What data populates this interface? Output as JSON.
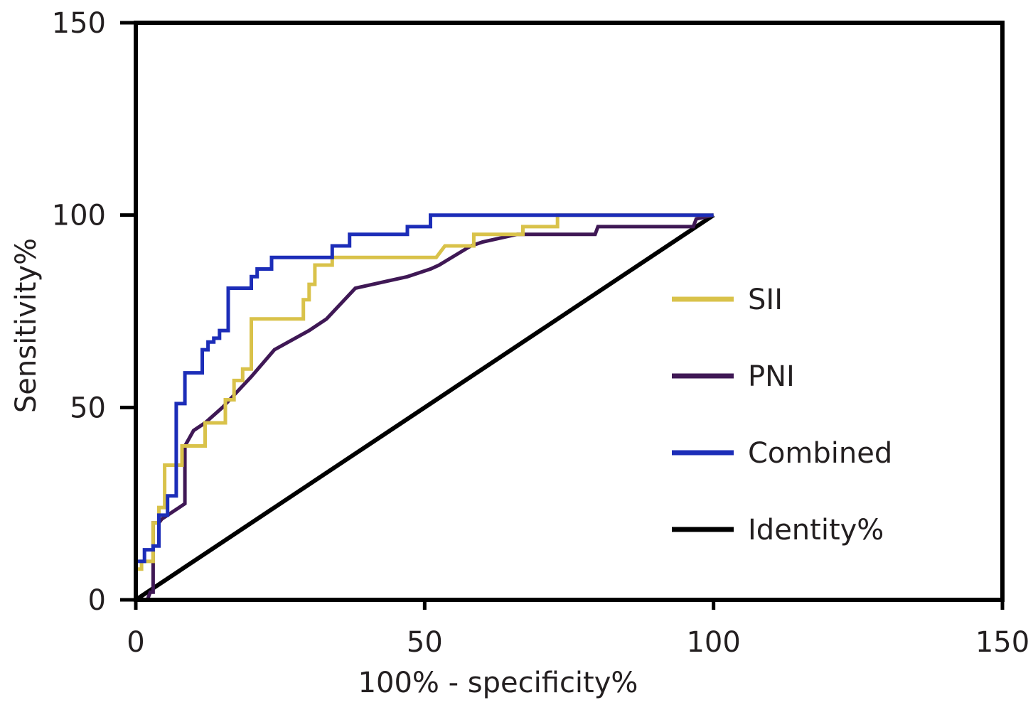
{
  "chart_data": {
    "type": "line",
    "xlabel": "100% - specificity%",
    "ylabel": "Sensitivity%",
    "xlim": [
      0,
      150
    ],
    "ylim": [
      0,
      150
    ],
    "xticks": [
      "0",
      "50",
      "100",
      "150"
    ],
    "yticks": [
      "0",
      "50",
      "100",
      "150"
    ],
    "grid": false,
    "legend_position": "right",
    "series": [
      {
        "name": "SII",
        "color": "#d9c24a",
        "x": [
          0,
          0,
          1,
          1,
          3,
          3,
          4,
          4,
          5,
          5,
          8,
          8,
          12,
          12,
          15.5,
          15.5,
          17,
          17,
          18.5,
          18.5,
          20,
          20,
          29,
          29,
          30,
          30,
          31,
          31,
          34,
          34,
          52,
          53.5,
          53.5,
          58,
          58.5,
          58.5,
          67,
          67,
          73,
          73,
          100
        ],
        "y": [
          0,
          8,
          8,
          10,
          10,
          20,
          20,
          24,
          24,
          35,
          35,
          40,
          40,
          46,
          46,
          52,
          52,
          57,
          57,
          60,
          60,
          73,
          73,
          78,
          78,
          82,
          82,
          87,
          87,
          89,
          89,
          92,
          92,
          92,
          92,
          95,
          95,
          97,
          97,
          100,
          100
        ]
      },
      {
        "name": "PNI",
        "color": "#3f1855",
        "x": [
          0,
          2,
          2.5,
          3,
          3,
          4,
          4.5,
          8.5,
          8.5,
          10,
          12,
          15,
          20,
          24,
          30,
          33,
          38,
          44,
          47,
          51,
          52.5,
          58,
          60,
          66,
          79.5,
          80,
          96.5,
          97,
          100
        ],
        "y": [
          0,
          0,
          2,
          2,
          20,
          20,
          21,
          25,
          40,
          44,
          46,
          50,
          58,
          65,
          70,
          73,
          81,
          83,
          84,
          86,
          87,
          92,
          93,
          95,
          95,
          97,
          97,
          99,
          100
        ]
      },
      {
        "name": "Combined",
        "color": "#1c2db8",
        "x": [
          0,
          1.5,
          1.5,
          3,
          3,
          4,
          4,
          5.5,
          5.5,
          7,
          7,
          8.5,
          8.5,
          11.5,
          11.5,
          12.5,
          12.5,
          13.5,
          13.5,
          14.5,
          14.5,
          16,
          16,
          20,
          20,
          21,
          21,
          23.5,
          23.5,
          34,
          34,
          37,
          37,
          47,
          47,
          51,
          51,
          58.5,
          58.5,
          72,
          100
        ],
        "y": [
          10,
          10,
          13,
          13,
          14,
          14,
          22,
          22,
          27,
          27,
          51,
          51,
          59,
          59,
          65,
          65,
          67,
          67,
          68,
          68,
          70,
          70,
          81,
          81,
          84,
          84,
          86,
          86,
          89,
          89,
          92,
          92,
          95,
          95,
          97,
          97,
          100,
          100,
          100,
          100,
          100
        ]
      },
      {
        "name": "Identity%",
        "color": "#000000",
        "x": [
          0,
          100
        ],
        "y": [
          0,
          100
        ]
      }
    ]
  }
}
